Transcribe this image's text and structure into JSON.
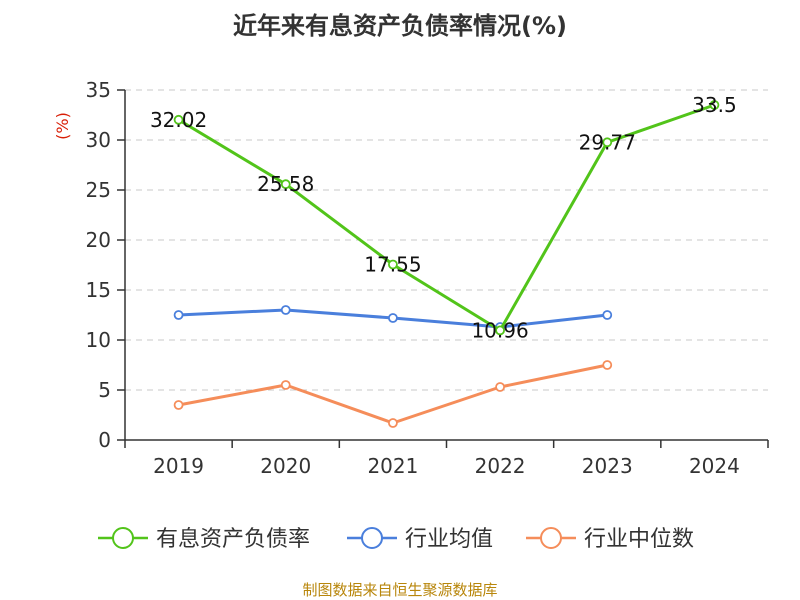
{
  "chart_data": {
    "type": "line",
    "title": "近年来有息资产负债率情况(%)",
    "ylabel": "(%)",
    "xlabel": "",
    "categories": [
      "2019",
      "2020",
      "2021",
      "2022",
      "2023",
      "2024"
    ],
    "ylim": [
      0,
      35
    ],
    "yticks": [
      0,
      5,
      10,
      15,
      20,
      25,
      30,
      35
    ],
    "grid": true,
    "legend_position": "bottom",
    "series": [
      {
        "name": "有息资产负债率",
        "color": "#52c41a",
        "values": [
          32.02,
          25.58,
          17.55,
          10.96,
          29.77,
          33.5
        ],
        "labels": [
          "32.02",
          "25.58",
          "17.55",
          "10.96",
          "29.77",
          "33.5"
        ]
      },
      {
        "name": "行业均值",
        "color": "#4a7fdc",
        "values": [
          12.5,
          13.0,
          12.2,
          11.3,
          12.5,
          null
        ]
      },
      {
        "name": "行业中位数",
        "color": "#f58d5a",
        "values": [
          3.5,
          5.5,
          1.7,
          5.3,
          7.5,
          null
        ]
      }
    ],
    "source": "制图数据来自恒生聚源数据库"
  }
}
